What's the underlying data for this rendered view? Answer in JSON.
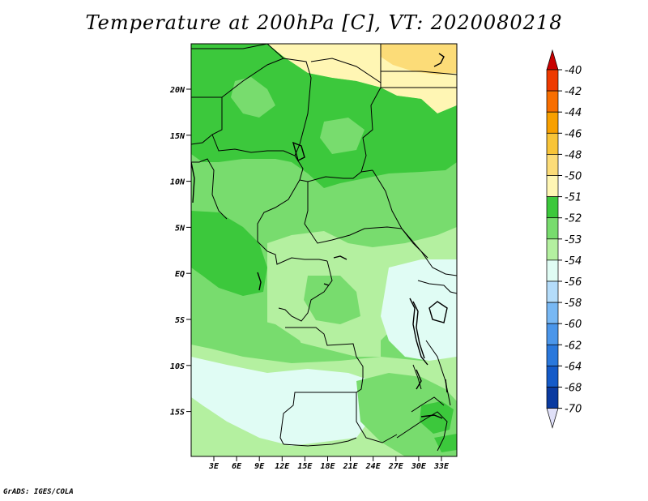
{
  "title": "Temperature at 200hPa [C], VT: 2020080218",
  "footer": "GrADS: IGES/COLA",
  "lat_labels": [
    "20N",
    "15N",
    "10N",
    "5N",
    "EQ",
    "5S",
    "10S",
    "15S"
  ],
  "lon_labels": [
    "3E",
    "6E",
    "9E",
    "12E",
    "15E",
    "18E",
    "21E",
    "24E",
    "27E",
    "30E",
    "33E"
  ],
  "colorbar": {
    "labels": [
      "-40",
      "-42",
      "-44",
      "-46",
      "-48",
      "-50",
      "-51",
      "-52",
      "-53",
      "-54",
      "-56",
      "-58",
      "-60",
      "-62",
      "-64",
      "-68",
      "-70"
    ],
    "colors": [
      "#c80000",
      "#ee3a00",
      "#f86e00",
      "#f8a000",
      "#f8c438",
      "#fcdc78",
      "#fff6b4",
      "#3cc83c",
      "#78dc6e",
      "#b4f0a0",
      "#e0fcf4",
      "#b4dcfa",
      "#78b8f4",
      "#4b96ea",
      "#2a78dc",
      "#145ac8",
      "#0a3aa0",
      "#0a1470",
      "#e0e0f8"
    ]
  },
  "map_colors": {
    "yellow_light": "#fff6b4",
    "yellow": "#fcdc78",
    "green_dark": "#3cc83c",
    "green": "#78dc6e",
    "green_light": "#b4f0a0",
    "cyan_light": "#e0fcf4"
  }
}
